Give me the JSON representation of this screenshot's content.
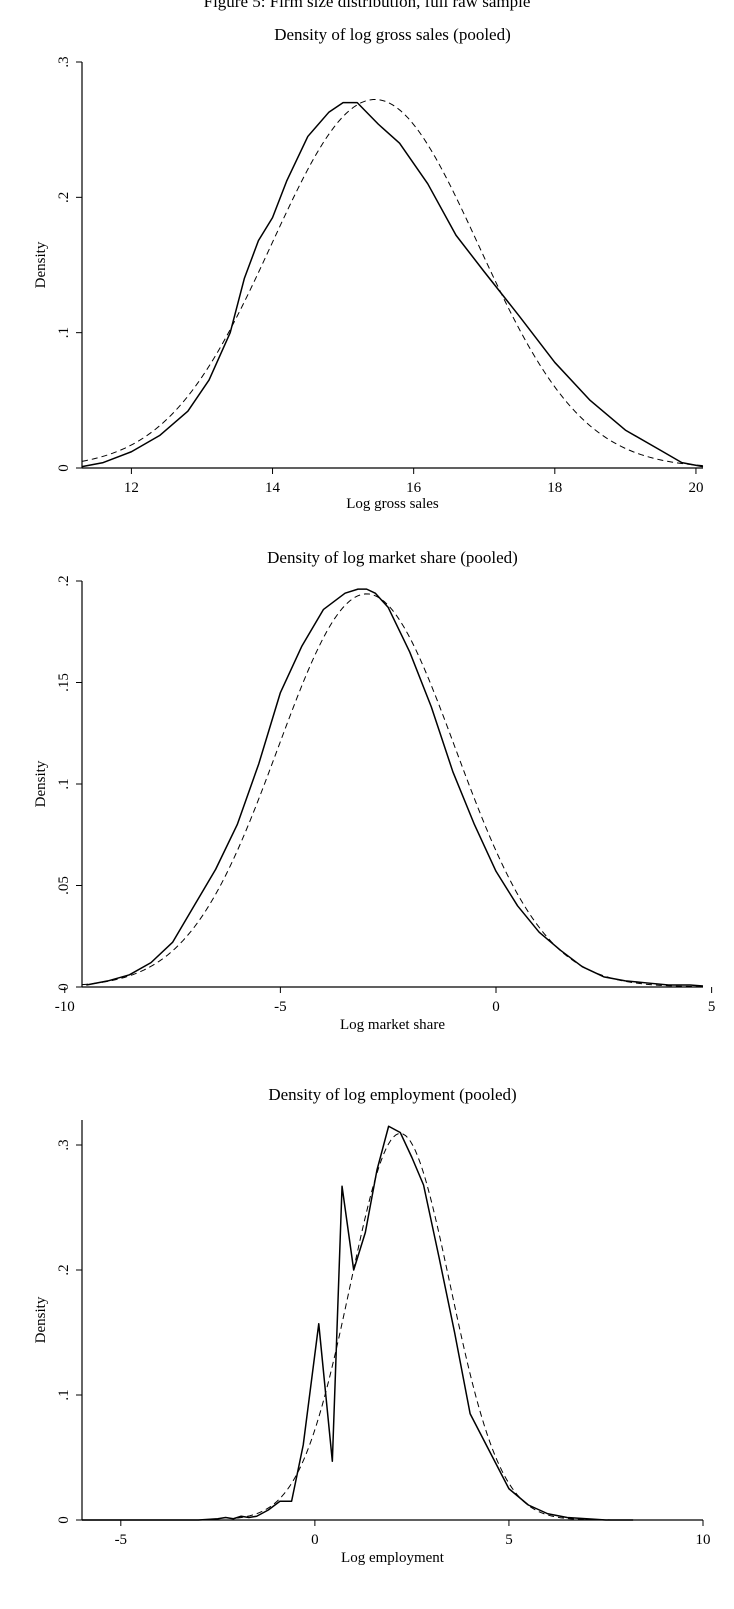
{
  "page": {
    "header": "Figure 5: Firm size distribution, full raw sample"
  },
  "chart_data": [
    {
      "type": "line",
      "title": "Density of log gross sales (pooled)",
      "xlabel": "Log gross sales",
      "ylabel": "Density",
      "xlim": [
        11.3,
        20.1
      ],
      "ylim": [
        0,
        0.3
      ],
      "xticks": [
        12,
        14,
        16,
        18,
        20
      ],
      "xtick_labels": [
        "12",
        "14",
        "16",
        "18",
        "20"
      ],
      "yticks": [
        0,
        0.1,
        0.2,
        0.3
      ],
      "ytick_labels": [
        "0",
        ".1",
        ".2",
        ".3"
      ],
      "grid": false,
      "series": [
        {
          "style": "solid",
          "x": [
            11.3,
            11.6,
            12.0,
            12.4,
            12.8,
            13.1,
            13.4,
            13.6,
            13.8,
            14.0,
            14.2,
            14.5,
            14.8,
            15.0,
            15.2,
            15.5,
            15.8,
            16.2,
            16.6,
            17.0,
            17.5,
            18.0,
            18.5,
            19.0,
            19.5,
            19.8,
            20.1
          ],
          "y": [
            0.001,
            0.004,
            0.012,
            0.024,
            0.042,
            0.065,
            0.1,
            0.14,
            0.168,
            0.185,
            0.212,
            0.245,
            0.263,
            0.27,
            0.27,
            0.254,
            0.24,
            0.21,
            0.172,
            0.145,
            0.112,
            0.078,
            0.05,
            0.028,
            0.013,
            0.004,
            0.001
          ]
        },
        {
          "style": "dashed",
          "kind": "normal",
          "mean": 15.45,
          "sd": 1.465,
          "x_range": [
            11.3,
            20.1
          ]
        }
      ]
    },
    {
      "type": "line",
      "title": "Density of log market share (pooled)",
      "xlabel": "Log market share",
      "ylabel": "Density",
      "xlim": [
        -9.6,
        4.8
      ],
      "ylim": [
        0,
        0.2
      ],
      "xticks": [
        -10,
        -5,
        0,
        5
      ],
      "xtick_labels": [
        "-10",
        "-5",
        "0",
        "5"
      ],
      "yticks": [
        0,
        0.05,
        0.1,
        0.15,
        0.2
      ],
      "ytick_labels": [
        "0",
        ".05",
        ".1",
        ".15",
        ".2"
      ],
      "grid": false,
      "series": [
        {
          "style": "solid",
          "x": [
            -9.5,
            -9.0,
            -8.5,
            -8.0,
            -7.5,
            -7.0,
            -6.5,
            -6.0,
            -5.5,
            -5.0,
            -4.5,
            -4.0,
            -3.5,
            -3.2,
            -3.0,
            -2.8,
            -2.5,
            -2.0,
            -1.5,
            -1.0,
            -0.5,
            0.0,
            0.5,
            1.0,
            1.5,
            2.0,
            2.5,
            3.0,
            3.5,
            4.0,
            4.5,
            4.8
          ],
          "y": [
            0.001,
            0.003,
            0.006,
            0.012,
            0.022,
            0.04,
            0.058,
            0.08,
            0.11,
            0.145,
            0.168,
            0.186,
            0.194,
            0.196,
            0.196,
            0.194,
            0.187,
            0.165,
            0.138,
            0.106,
            0.08,
            0.057,
            0.04,
            0.027,
            0.018,
            0.01,
            0.005,
            0.003,
            0.002,
            0.001,
            0.001,
            0.0005
          ]
        },
        {
          "style": "dashed",
          "kind": "normal",
          "mean": -3.0,
          "sd": 2.06,
          "x_range": [
            -9.6,
            4.8
          ]
        }
      ]
    },
    {
      "type": "line",
      "title": "Density of log employment (pooled)",
      "xlabel": "Log employment",
      "ylabel": "Density",
      "xlim": [
        -6,
        10
      ],
      "ylim": [
        0,
        0.32
      ],
      "xticks": [
        -5,
        0,
        5,
        10
      ],
      "xtick_labels": [
        "-5",
        "0",
        "5",
        "10"
      ],
      "yticks": [
        0,
        0.1,
        0.2,
        0.3
      ],
      "ytick_labels": [
        "0",
        ".1",
        ".2",
        ".3"
      ],
      "grid": false,
      "series": [
        {
          "style": "solid",
          "x": [
            -6.0,
            -5.0,
            -4.0,
            -3.0,
            -2.5,
            -2.3,
            -2.1,
            -1.9,
            -1.7,
            -1.5,
            -1.2,
            -0.9,
            -0.6,
            -0.3,
            0.1,
            0.45,
            0.7,
            1.0,
            1.3,
            1.6,
            1.9,
            2.2,
            2.5,
            2.8,
            3.2,
            3.6,
            4.0,
            4.5,
            5.0,
            5.5,
            6.0,
            6.5,
            7.0,
            7.5,
            8.2
          ],
          "y": [
            0.0,
            0.0,
            0.0,
            0.0,
            0.001,
            0.002,
            0.001,
            0.003,
            0.002,
            0.003,
            0.008,
            0.015,
            0.015,
            0.06,
            0.157,
            0.047,
            0.267,
            0.2,
            0.23,
            0.28,
            0.315,
            0.31,
            0.29,
            0.268,
            0.21,
            0.15,
            0.085,
            0.055,
            0.025,
            0.012,
            0.005,
            0.002,
            0.001,
            0.0,
            0.0
          ]
        },
        {
          "style": "dashed",
          "kind": "normal",
          "mean": 2.2,
          "sd": 1.29,
          "x_range": [
            -2.0,
            8.2
          ]
        }
      ]
    }
  ]
}
